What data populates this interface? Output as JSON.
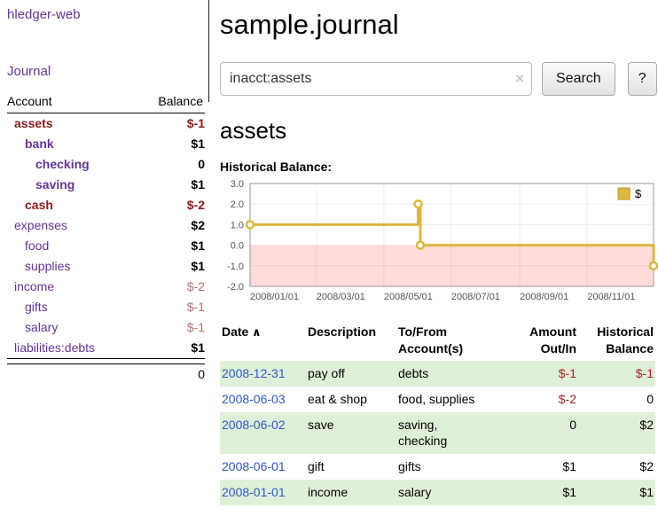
{
  "colors": {
    "purple": "#663399",
    "negative-strong": "#8b1a1a",
    "negative-soft": "#b4716f",
    "negative-table": "#a02525",
    "date-blue": "#2f55cc",
    "row-green": "#dff0d8",
    "chart-gold": "#ddb63d",
    "chart-pink": "#ffdcdc"
  },
  "sidebar": {
    "app_title": "hledger-web",
    "journal_link": "Journal",
    "accounts": {
      "headers": {
        "account": "Account",
        "balance": "Balance"
      },
      "rows": [
        {
          "account": "assets",
          "indent": 0,
          "bold": true,
          "name_negative": true,
          "balance": "$-1",
          "balance_negative": true
        },
        {
          "account": "bank",
          "indent": 1,
          "bold": true,
          "name_negative": false,
          "balance": "$1",
          "balance_negative": false
        },
        {
          "account": "checking",
          "indent": 2,
          "bold": true,
          "name_negative": false,
          "balance": "0",
          "balance_negative": false
        },
        {
          "account": "saving",
          "indent": 2,
          "bold": true,
          "name_negative": false,
          "balance": "$1",
          "balance_negative": false
        },
        {
          "account": "cash",
          "indent": 1,
          "bold": true,
          "name_negative": true,
          "balance": "$-2",
          "balance_negative": true
        },
        {
          "account": "expenses",
          "indent": 0,
          "bold": false,
          "name_negative": false,
          "balance": "$2",
          "balance_negative": false
        },
        {
          "account": "food",
          "indent": 1,
          "bold": false,
          "name_negative": false,
          "balance": "$1",
          "balance_negative": false
        },
        {
          "account": "supplies",
          "indent": 1,
          "bold": false,
          "name_negative": false,
          "balance": "$1",
          "balance_negative": false
        },
        {
          "account": "income",
          "indent": 0,
          "bold": false,
          "name_negative": false,
          "balance": "$-2",
          "balance_negative": true
        },
        {
          "account": "gifts",
          "indent": 1,
          "bold": false,
          "name_negative": false,
          "balance": "$-1",
          "balance_negative": true
        },
        {
          "account": "salary",
          "indent": 1,
          "bold": false,
          "name_negative": false,
          "balance": "$-1",
          "balance_negative": true
        },
        {
          "account": "liabilities:debts",
          "indent": 0,
          "bold": false,
          "name_negative": false,
          "balance": "$1",
          "balance_negative": false
        }
      ],
      "total": "0"
    }
  },
  "main": {
    "title": "sample.journal",
    "search": {
      "value": "inacct:assets",
      "clear_icon": "×",
      "button_label": "Search",
      "help_label": "?"
    },
    "heading": "assets",
    "chart_label": "Historical Balance:",
    "register": {
      "columns": [
        {
          "label": "Date",
          "sort_indicator": "∧",
          "align": "left"
        },
        {
          "label": "Description",
          "align": "left"
        },
        {
          "label": "To/From\nAccount(s)",
          "align": "left"
        },
        {
          "label": "Amount\nOut/In",
          "align": "right"
        },
        {
          "label": "Historical\nBalance",
          "align": "right"
        }
      ],
      "rows": [
        {
          "date": "2008-12-31",
          "description": "pay off",
          "accounts": "debts",
          "amount": "$-1",
          "amount_negative": true,
          "balance": "$-1",
          "balance_negative": true,
          "shaded": true
        },
        {
          "date": "2008-06-03",
          "description": "eat & shop",
          "accounts": "food, supplies",
          "amount": "$-2",
          "amount_negative": true,
          "balance": "0",
          "balance_negative": false,
          "shaded": false
        },
        {
          "date": "2008-06-02",
          "description": "save",
          "accounts": "saving,\nchecking",
          "amount": "0",
          "amount_negative": false,
          "balance": "$2",
          "balance_negative": false,
          "shaded": true
        },
        {
          "date": "2008-06-01",
          "description": "gift",
          "accounts": "gifts",
          "amount": "$1",
          "amount_negative": false,
          "balance": "$2",
          "balance_negative": false,
          "shaded": false
        },
        {
          "date": "2008-01-01",
          "description": "income",
          "accounts": "salary",
          "amount": "$1",
          "amount_negative": false,
          "balance": "$1",
          "balance_negative": false,
          "shaded": true
        }
      ]
    }
  },
  "chart_data": {
    "type": "line",
    "step": true,
    "title": "Historical Balance:",
    "series": [
      {
        "name": "$",
        "color": "#ddb63d",
        "points": [
          [
            "2008-01-01",
            1
          ],
          [
            "2008-06-01",
            2
          ],
          [
            "2008-06-03",
            0
          ],
          [
            "2008-12-31",
            -1
          ]
        ]
      }
    ],
    "xlim": [
      "2008-01-01",
      "2008-12-31"
    ],
    "ylim": [
      -2,
      3
    ],
    "yticks": [
      3.0,
      2.0,
      1.0,
      0.0,
      -1.0,
      -2.0
    ],
    "xticks": [
      "2008/01/01",
      "2008/03/01",
      "2008/05/01",
      "2008/07/01",
      "2008/09/01",
      "2008/11/01"
    ],
    "legend": {
      "label": "$",
      "position": "top-right"
    },
    "negative_region": {
      "from": 0,
      "to": -2,
      "color": "#ffdcdc"
    },
    "grid": true
  }
}
